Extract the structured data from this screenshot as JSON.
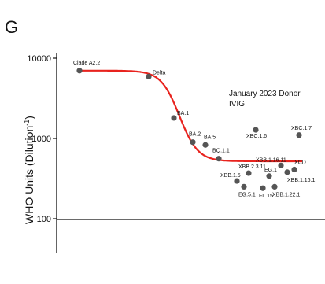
{
  "chart_data": {
    "type": "scatter",
    "panel_letter": "G",
    "ylabel_main": "WHO Units (Dilution",
    "ylabel_sup": "-1",
    "ylabel_close": ")",
    "yscale": "log",
    "ylim": [
      20,
      10000
    ],
    "ytick_labels": [
      "10000",
      "1000",
      "100"
    ],
    "ytick_values": [
      10000,
      1000,
      100
    ],
    "annotation_line1": "January 2023 Donor",
    "annotation_line2": "IVIG",
    "reference_line_value": 100,
    "colors": {
      "point": "#555555",
      "curve": "#e8231e",
      "axis": "#111111"
    },
    "fit_curve": {
      "type": "sigmoid",
      "upper_plateau": 7000,
      "lower_plateau": 520
    },
    "points": [
      {
        "label": "Clade A2.2",
        "y": 7000
      },
      {
        "label": "Delta",
        "y": 5900
      },
      {
        "label": "BA.1",
        "y": 1800
      },
      {
        "label": "BA.2",
        "y": 900
      },
      {
        "label": "BA.5",
        "y": 830
      },
      {
        "label": "BQ.1.1",
        "y": 560
      },
      {
        "label": "XBC.1.6",
        "y": 1280
      },
      {
        "label": "XBC.1.7",
        "y": 1100
      },
      {
        "label": "XBB.1.16.11",
        "y": 460
      },
      {
        "label": "XCD",
        "y": 410
      },
      {
        "label": "XBB.2.3.11",
        "y": 370
      },
      {
        "label": "EG.1",
        "y": 340
      },
      {
        "label": "XBB.1.16.1",
        "y": 380
      },
      {
        "label": "XBB.1.5",
        "y": 295
      },
      {
        "label": "EG.5.1",
        "y": 250
      },
      {
        "label": "FL.15",
        "y": 240
      },
      {
        "label": "XBB.1.22.1",
        "y": 250
      }
    ]
  }
}
